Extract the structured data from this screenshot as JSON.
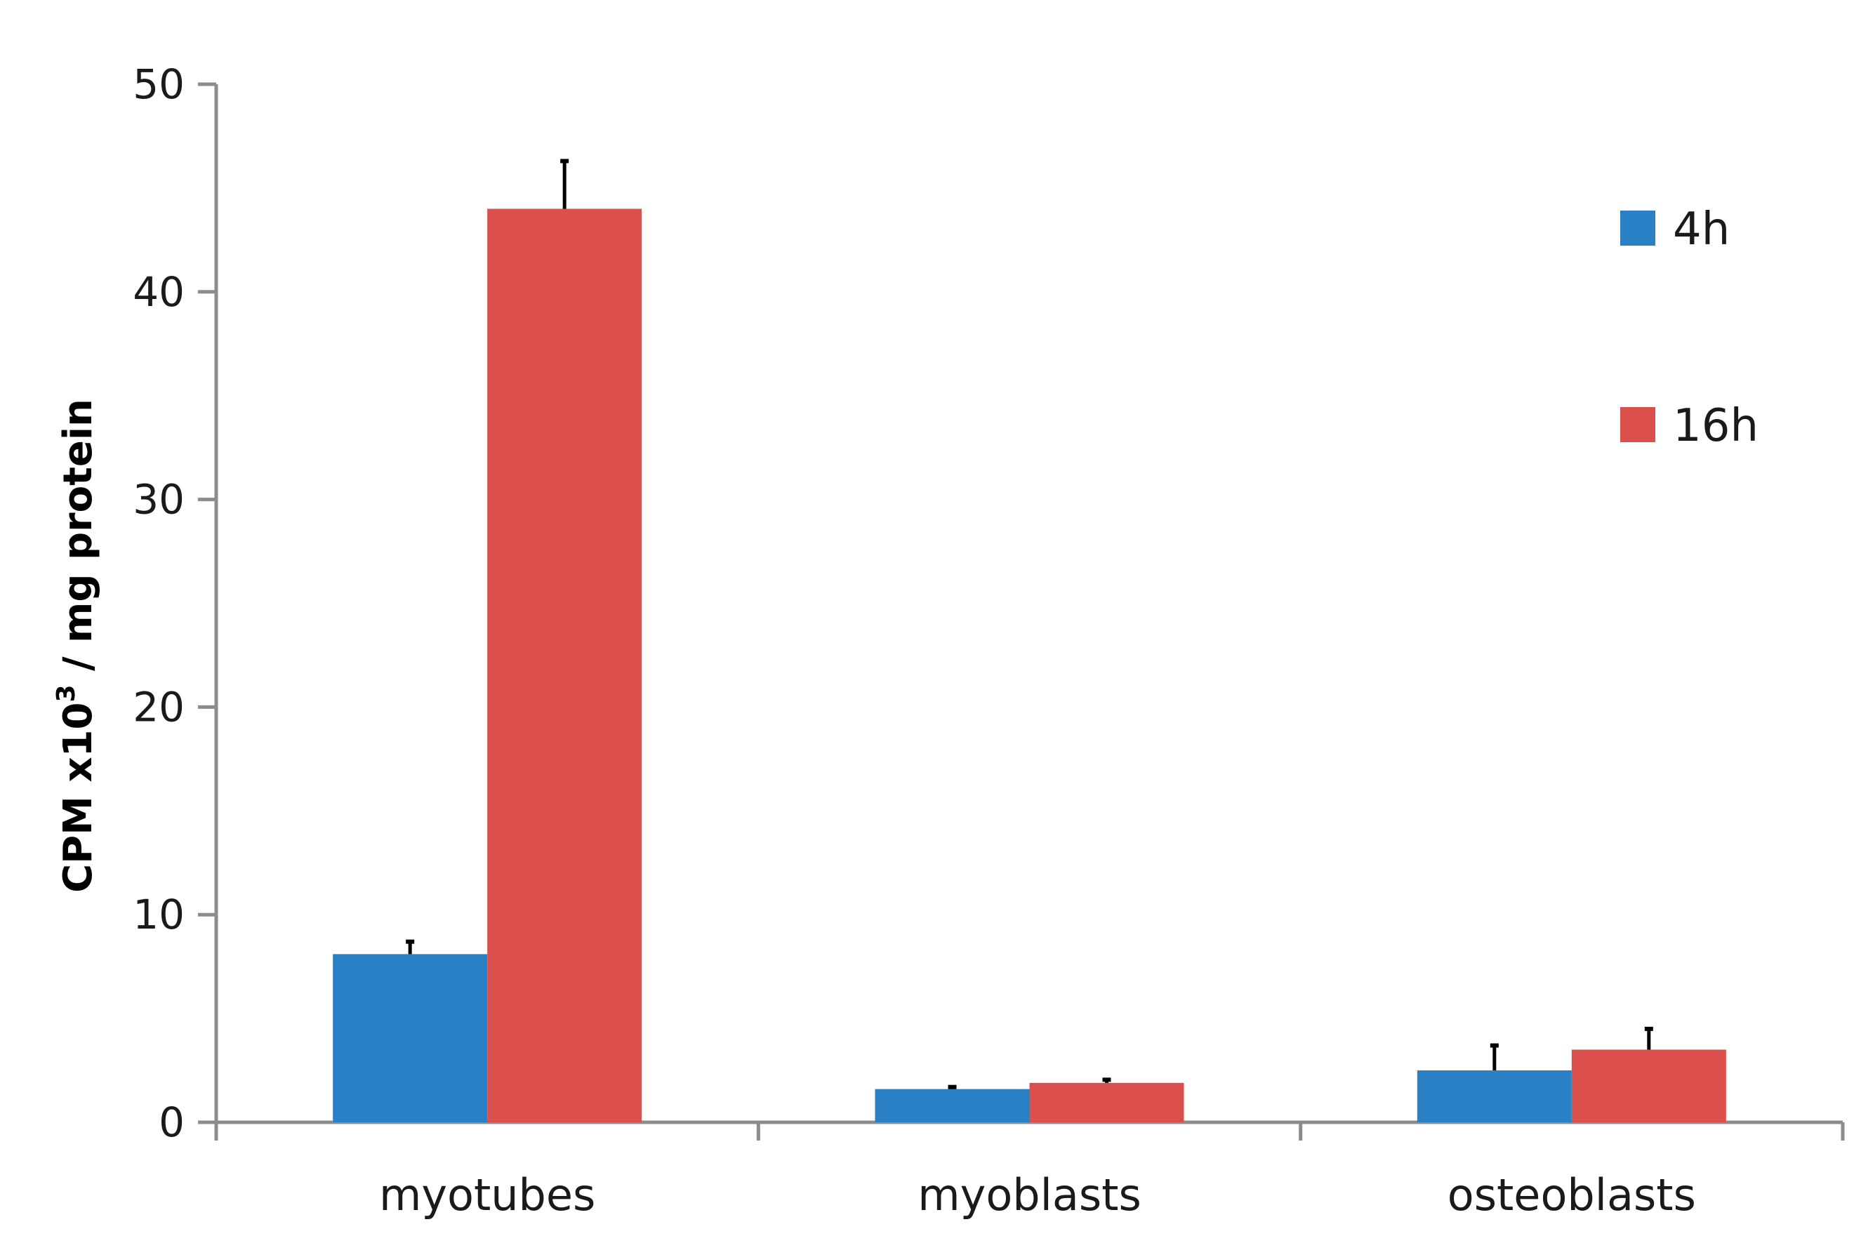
{
  "chart_data": {
    "type": "bar",
    "categories": [
      "myotubes",
      "myoblasts",
      "osteoblasts"
    ],
    "series": [
      {
        "name": "4h",
        "values": [
          8.1,
          1.6,
          2.5
        ],
        "errors": [
          0.6,
          0.1,
          1.2
        ],
        "color": "#2a80c4"
      },
      {
        "name": "16h",
        "values": [
          44.0,
          1.9,
          3.5
        ],
        "errors": [
          2.3,
          0.15,
          1.0
        ],
        "color": "#db504d"
      }
    ],
    "ylabel": {
      "main": "CPM x10",
      "sup": "3",
      "rest": " / mg protein"
    },
    "ylim": [
      0,
      50
    ],
    "yticks": [
      "0",
      "10",
      "20",
      "30",
      "40",
      "50"
    ],
    "legend": "top-right",
    "grid": false
  }
}
